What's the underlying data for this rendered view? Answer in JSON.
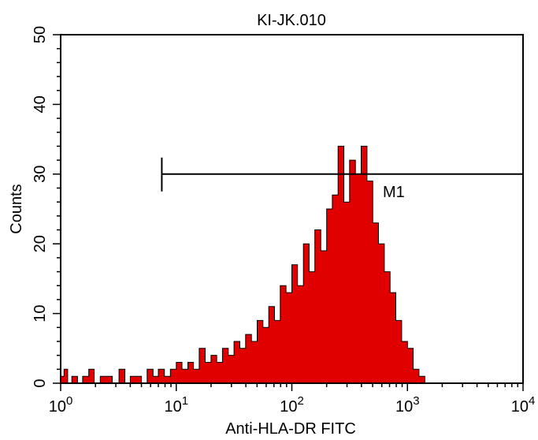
{
  "chart_data": {
    "type": "area",
    "title": "KI-JK.010",
    "xlabel": "Anti-HLA-DR FITC",
    "ylabel": "Counts",
    "x_scale": "log",
    "xlim": [
      1,
      10000
    ],
    "ylim": [
      0,
      50
    ],
    "x_ticks": [
      {
        "value": 1,
        "base": "10",
        "exp": "0"
      },
      {
        "value": 10,
        "base": "10",
        "exp": "1"
      },
      {
        "value": 100,
        "base": "10",
        "exp": "2"
      },
      {
        "value": 1000,
        "base": "10",
        "exp": "3"
      },
      {
        "value": 10000,
        "base": "10",
        "exp": "4"
      }
    ],
    "y_ticks": [
      {
        "value": 0,
        "label": "0"
      },
      {
        "value": 10,
        "label": "10"
      },
      {
        "value": 20,
        "label": "20"
      },
      {
        "value": 30,
        "label": "30"
      },
      {
        "value": 40,
        "label": "40"
      },
      {
        "value": 50,
        "label": "50"
      }
    ],
    "grid": false,
    "fill_color": "#e00000",
    "histogram": [
      {
        "x": 1.0,
        "count": 1
      },
      {
        "x": 1.07,
        "count": 2
      },
      {
        "x": 1.15,
        "count": 0
      },
      {
        "x": 1.25,
        "count": 1
      },
      {
        "x": 1.4,
        "count": 0
      },
      {
        "x": 1.55,
        "count": 1
      },
      {
        "x": 1.75,
        "count": 2
      },
      {
        "x": 1.95,
        "count": 0
      },
      {
        "x": 2.2,
        "count": 1
      },
      {
        "x": 2.5,
        "count": 1
      },
      {
        "x": 2.8,
        "count": 0
      },
      {
        "x": 3.2,
        "count": 2
      },
      {
        "x": 3.6,
        "count": 0
      },
      {
        "x": 4.0,
        "count": 1
      },
      {
        "x": 4.5,
        "count": 1
      },
      {
        "x": 5.0,
        "count": 0
      },
      {
        "x": 5.6,
        "count": 2
      },
      {
        "x": 6.3,
        "count": 1
      },
      {
        "x": 7.0,
        "count": 2
      },
      {
        "x": 7.9,
        "count": 1
      },
      {
        "x": 8.9,
        "count": 2
      },
      {
        "x": 10,
        "count": 3
      },
      {
        "x": 11.2,
        "count": 2
      },
      {
        "x": 12.6,
        "count": 3
      },
      {
        "x": 14.1,
        "count": 2
      },
      {
        "x": 15.8,
        "count": 5
      },
      {
        "x": 17.8,
        "count": 3
      },
      {
        "x": 20,
        "count": 4
      },
      {
        "x": 22.4,
        "count": 3
      },
      {
        "x": 25.1,
        "count": 5
      },
      {
        "x": 28.2,
        "count": 4
      },
      {
        "x": 31.6,
        "count": 6
      },
      {
        "x": 35.5,
        "count": 5
      },
      {
        "x": 39.8,
        "count": 7
      },
      {
        "x": 44.7,
        "count": 6
      },
      {
        "x": 50.1,
        "count": 9
      },
      {
        "x": 56.2,
        "count": 8
      },
      {
        "x": 63.1,
        "count": 11
      },
      {
        "x": 70.8,
        "count": 9
      },
      {
        "x": 79.4,
        "count": 14
      },
      {
        "x": 89.1,
        "count": 13
      },
      {
        "x": 100,
        "count": 17
      },
      {
        "x": 112,
        "count": 14
      },
      {
        "x": 126,
        "count": 20
      },
      {
        "x": 141,
        "count": 16
      },
      {
        "x": 158,
        "count": 22
      },
      {
        "x": 178,
        "count": 19
      },
      {
        "x": 200,
        "count": 25
      },
      {
        "x": 224,
        "count": 27
      },
      {
        "x": 251,
        "count": 34
      },
      {
        "x": 282,
        "count": 26
      },
      {
        "x": 316,
        "count": 32
      },
      {
        "x": 355,
        "count": 30
      },
      {
        "x": 398,
        "count": 34
      },
      {
        "x": 447,
        "count": 29
      },
      {
        "x": 501,
        "count": 23
      },
      {
        "x": 562,
        "count": 20
      },
      {
        "x": 631,
        "count": 16
      },
      {
        "x": 708,
        "count": 13
      },
      {
        "x": 794,
        "count": 9
      },
      {
        "x": 891,
        "count": 6
      },
      {
        "x": 1000,
        "count": 5
      },
      {
        "x": 1122,
        "count": 2
      },
      {
        "x": 1259,
        "count": 1
      },
      {
        "x": 1413,
        "count": 0
      }
    ],
    "marker": {
      "label": "M1",
      "x_start": 7.5,
      "x_end": 10000,
      "y": 30
    }
  }
}
